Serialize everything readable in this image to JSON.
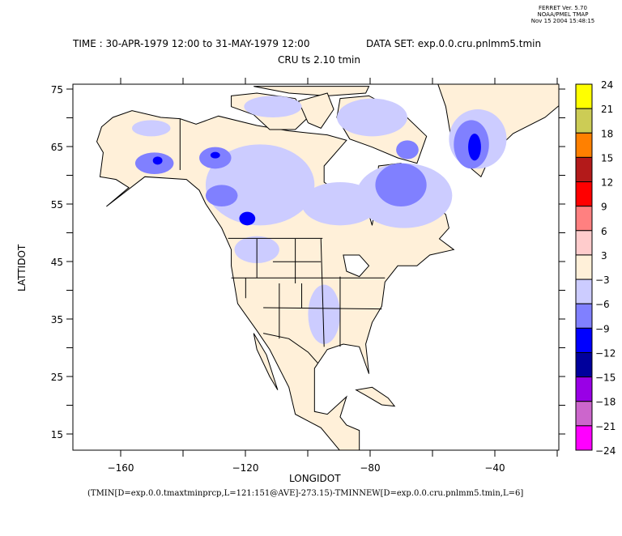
{
  "header": {
    "stamp_line1": "FERRET Ver. 5.70",
    "stamp_line2": "NOAA/PMEL TMAP",
    "stamp_line3": "Nov 15 2004 15:48:15",
    "title_time": "TIME : 30-APR-1979 12:00 to 31-MAY-1979 12:00",
    "title_dataset": "DATA SET: exp.0.0.cru.pnlmm5.tmin",
    "subtitle": "CRU ts 2.10 tmin"
  },
  "footer": {
    "expression": "(TMIN[D=exp.0.0.tmaxtminprcp,L=121:151@AVE]-273.15)-TMINNEW[D=exp.0.0.cru.pnlmm5.tmin,L=6]"
  },
  "chart_data": {
    "type": "heatmap",
    "title": "CRU ts 2.10 tmin",
    "xlabel": "LONGIDOT",
    "ylabel": "LATTIDOT",
    "xlim": [
      -175,
      -20
    ],
    "ylim": [
      12,
      76
    ],
    "xticks": [
      -160,
      -120,
      -80,
      -40
    ],
    "xtick_labels": [
      "-160",
      "-120",
      "-80",
      "-40"
    ],
    "yticks": [
      75,
      65,
      55,
      45,
      35,
      25,
      15
    ],
    "ytick_labels": [
      "75",
      "65",
      "55",
      "45",
      "35",
      "25",
      "15"
    ],
    "colorbar": {
      "levels": [
        24,
        21,
        18,
        15,
        12,
        9,
        6,
        3,
        -3,
        -6,
        -9,
        -12,
        -15,
        -18,
        -21,
        -24
      ],
      "labels": [
        "24",
        "21",
        "18",
        "15",
        "12",
        "9",
        "6",
        "3",
        "−3",
        "−6",
        "−9",
        "−12",
        "−15",
        "−18",
        "−21",
        "−24"
      ],
      "colors": [
        "#ffff00",
        "#cccc55",
        "#ff8000",
        "#b31a1a",
        "#ff0000",
        "#ff8080",
        "#ffcccc",
        "#fff0d9",
        "#ccccff",
        "#8080ff",
        "#0000ff",
        "#00009c",
        "#9900e6",
        "#cc66cc",
        "#ff00ff"
      ]
    },
    "description_regions": [
      {
        "region": "most of US, Mexico, Alaska interior",
        "range": "-3 to 3"
      },
      {
        "region": "western/central Canada, Baffin, Quebec",
        "range": "-6 to -3"
      },
      {
        "region": "Quebec/Labrador interior, Greenland coast",
        "range": "-9 to -6"
      },
      {
        "region": "Greenland interior, Alaska Range peaks",
        "range": "-12 to -9"
      }
    ]
  }
}
